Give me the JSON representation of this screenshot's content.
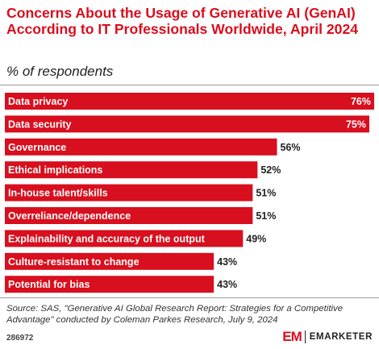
{
  "title": "Concerns About the Usage of Generative AI (GenAI) According to IT Professionals Worldwide, April 2024",
  "subtitle": "% of respondents",
  "chart_data": {
    "type": "bar",
    "orientation": "horizontal",
    "categories": [
      "Data privacy",
      "Data security",
      "Governance",
      "Ethical implications",
      "In-house talent/skills",
      "Overreliance/dependence",
      "Explainability and accuracy of the output",
      "Culture-resistant to change",
      "Potential for bias"
    ],
    "values": [
      76,
      75,
      56,
      52,
      51,
      51,
      49,
      43,
      43
    ],
    "value_labels": [
      "76%",
      "75%",
      "56%",
      "52%",
      "51%",
      "51%",
      "49%",
      "43%",
      "43%"
    ],
    "xlim": [
      0,
      76
    ],
    "bar_color": "#d80f1e",
    "grid": false
  },
  "source": "Source: SAS, \"Generative AI Global Research Report: Strategies for a Competitive Advantage\" conducted by Coleman Parkes Research, July 9, 2024",
  "chart_id": "286972",
  "brand": {
    "mark": "EM",
    "name": "EMARKETER"
  }
}
